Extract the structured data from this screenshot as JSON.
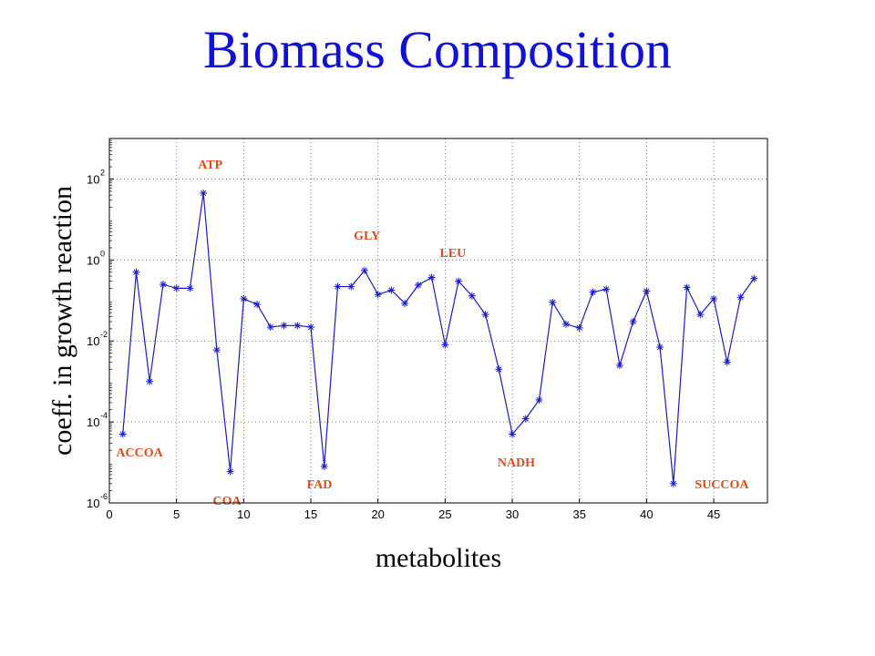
{
  "chart_data": {
    "type": "line",
    "title": "Biomass Composition",
    "xlabel": "metabolites",
    "ylabel": "coeff. in growth reaction",
    "xlim": [
      0,
      49
    ],
    "ylim": [
      1e-06,
      1000
    ],
    "yscale": "log",
    "grid": "dotted",
    "marker": "asterisk",
    "x_ticks": [
      0,
      5,
      10,
      15,
      20,
      25,
      30,
      35,
      40,
      45
    ],
    "y_ticks": [
      {
        "base": "10",
        "exp": "-6",
        "value": 1e-06
      },
      {
        "base": "10",
        "exp": "-4",
        "value": 0.0001
      },
      {
        "base": "10",
        "exp": "-2",
        "value": 0.01
      },
      {
        "base": "10",
        "exp": "0",
        "value": 1
      },
      {
        "base": "10",
        "exp": "2",
        "value": 100
      }
    ],
    "series": [
      {
        "x": [
          1,
          2,
          3,
          4,
          5,
          6,
          7,
          8,
          9,
          10,
          11,
          12,
          13,
          14,
          15,
          16,
          17,
          18,
          19,
          20,
          21,
          22,
          23,
          24,
          25,
          26,
          27,
          28,
          29,
          30,
          31,
          32,
          33,
          34,
          35,
          36,
          37,
          38,
          39,
          40,
          41,
          42,
          43,
          44,
          45,
          46,
          47,
          48
        ],
        "y": [
          5e-05,
          0.5,
          0.001,
          0.25,
          0.2,
          0.2,
          45,
          0.006,
          6e-06,
          0.11,
          0.08,
          0.022,
          0.024,
          0.024,
          0.022,
          8e-06,
          0.22,
          0.22,
          0.55,
          0.14,
          0.18,
          0.085,
          0.24,
          0.37,
          0.008,
          0.3,
          0.13,
          0.045,
          0.002,
          5e-05,
          0.00012,
          0.00035,
          0.09,
          0.026,
          0.021,
          0.16,
          0.19,
          0.0025,
          0.03,
          0.17,
          0.007,
          3e-06,
          0.21,
          0.045,
          0.11,
          0.003,
          0.12,
          0.35
        ]
      }
    ],
    "annotations": [
      {
        "text": "ATP",
        "x": 6.6,
        "y": 180
      },
      {
        "text": "GLY",
        "x": 18.2,
        "y": 3.2
      },
      {
        "text": "LEU",
        "x": 24.6,
        "y": 1.2
      },
      {
        "text": "ACCOA",
        "x": 0.5,
        "y": 1.4e-05
      },
      {
        "text": "NADH",
        "x": 28.9,
        "y": 8e-06
      },
      {
        "text": "FAD",
        "x": 14.7,
        "y": 2.3e-06
      },
      {
        "text": "COA",
        "x": 7.7,
        "y": 9e-07
      },
      {
        "text": "SUCCOA",
        "x": 43.6,
        "y": 2.3e-06
      }
    ]
  },
  "colors": {
    "title": "#1010d8",
    "line": "#1a1acc",
    "annotation": "#e24a1a",
    "grid": "#555555",
    "axis": "#000000"
  }
}
